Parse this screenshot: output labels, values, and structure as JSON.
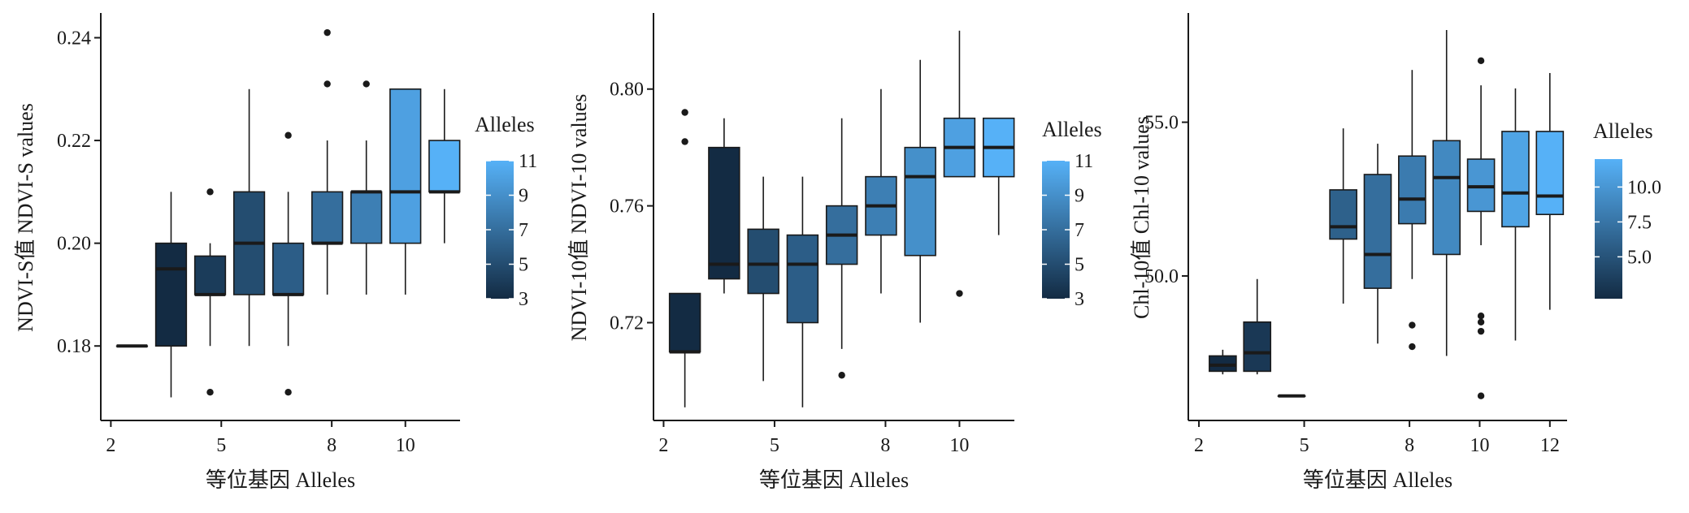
{
  "chart_data": [
    {
      "type": "box",
      "xlabel": "等位基因 Alleles",
      "ylabel": "NDVI-S值 NDVI-S values",
      "x_ticks": [
        2,
        5,
        8,
        10
      ],
      "y_ticks": [
        "0.18",
        "0.20",
        "0.22",
        "0.24"
      ],
      "x_range": [
        1.5,
        13.0
      ],
      "ylim": [
        0.1655,
        0.2445
      ],
      "color_min": 3,
      "color_max": 11,
      "legend": {
        "title": "Alleles",
        "ticks": [
          "3",
          "5",
          "7",
          "9",
          "11"
        ],
        "tick_values": [
          3,
          5,
          7,
          9,
          11
        ],
        "position": "right"
      },
      "boxes": [
        {
          "x": 2.5,
          "allele": 2,
          "lower_whisker": 0.18,
          "q1": 0.18,
          "median": 0.18,
          "q3": 0.18,
          "upper_whisker": 0.18,
          "outliers": []
        },
        {
          "x": 3.75,
          "allele": 3,
          "lower_whisker": 0.17,
          "q1": 0.18,
          "median": 0.195,
          "q3": 0.2,
          "upper_whisker": 0.21,
          "outliers": []
        },
        {
          "x": 5.0,
          "allele": 4,
          "lower_whisker": 0.18,
          "q1": 0.19,
          "median": 0.19,
          "q3": 0.1975,
          "upper_whisker": 0.2,
          "outliers": [
            0.21,
            0.171
          ]
        },
        {
          "x": 6.25,
          "allele": 5,
          "lower_whisker": 0.18,
          "q1": 0.19,
          "median": 0.2,
          "q3": 0.21,
          "upper_whisker": 0.23,
          "outliers": []
        },
        {
          "x": 7.5,
          "allele": 6,
          "lower_whisker": 0.18,
          "q1": 0.19,
          "median": 0.19,
          "q3": 0.2,
          "upper_whisker": 0.21,
          "outliers": [
            0.221,
            0.171
          ]
        },
        {
          "x": 8.75,
          "allele": 7,
          "lower_whisker": 0.19,
          "q1": 0.2,
          "median": 0.2,
          "q3": 0.21,
          "upper_whisker": 0.22,
          "outliers": [
            0.241,
            0.231
          ]
        },
        {
          "x": 10.0,
          "allele": 8,
          "lower_whisker": 0.19,
          "q1": 0.2,
          "median": 0.21,
          "q3": 0.21,
          "upper_whisker": 0.22,
          "outliers": [
            0.231
          ]
        },
        {
          "x": 11.25,
          "allele": 10,
          "lower_whisker": 0.19,
          "q1": 0.2,
          "median": 0.21,
          "q3": 0.23,
          "upper_whisker": 0.23,
          "outliers": []
        },
        {
          "x": 12.5,
          "allele": 11,
          "lower_whisker": 0.2,
          "q1": 0.21,
          "median": 0.21,
          "q3": 0.22,
          "upper_whisker": 0.23,
          "outliers": []
        }
      ]
    },
    {
      "type": "box",
      "xlabel": "等位基因 Alleles",
      "ylabel": "NDVI-10值 NDVI-10 values",
      "x_ticks": [
        2,
        5,
        8,
        10
      ],
      "y_ticks": [
        "0.72",
        "0.76",
        "0.80"
      ],
      "x_range": [
        1.5,
        13.0
      ],
      "ylim": [
        0.6865,
        0.8255
      ],
      "color_min": 3,
      "color_max": 11,
      "legend": {
        "title": "Alleles",
        "ticks": [
          "3",
          "5",
          "7",
          "9",
          "11"
        ],
        "tick_values": [
          3,
          5,
          7,
          9,
          11
        ],
        "position": "right"
      },
      "boxes": [
        {
          "x": 2.5,
          "allele": 2,
          "lower_whisker": 0.691,
          "q1": 0.71,
          "median": 0.71,
          "q3": 0.73,
          "upper_whisker": 0.73,
          "outliers": [
            0.792,
            0.782
          ]
        },
        {
          "x": 3.75,
          "allele": 3,
          "lower_whisker": 0.73,
          "q1": 0.735,
          "median": 0.74,
          "q3": 0.78,
          "upper_whisker": 0.79,
          "outliers": []
        },
        {
          "x": 5.0,
          "allele": 5,
          "lower_whisker": 0.7,
          "q1": 0.73,
          "median": 0.74,
          "q3": 0.752,
          "upper_whisker": 0.77,
          "outliers": []
        },
        {
          "x": 6.25,
          "allele": 6,
          "lower_whisker": 0.691,
          "q1": 0.72,
          "median": 0.74,
          "q3": 0.75,
          "upper_whisker": 0.77,
          "outliers": []
        },
        {
          "x": 7.5,
          "allele": 7,
          "lower_whisker": 0.711,
          "q1": 0.74,
          "median": 0.75,
          "q3": 0.76,
          "upper_whisker": 0.79,
          "outliers": [
            0.702
          ]
        },
        {
          "x": 8.75,
          "allele": 8,
          "lower_whisker": 0.73,
          "q1": 0.75,
          "median": 0.76,
          "q3": 0.77,
          "upper_whisker": 0.8,
          "outliers": []
        },
        {
          "x": 10.0,
          "allele": 9,
          "lower_whisker": 0.72,
          "q1": 0.743,
          "median": 0.77,
          "q3": 0.78,
          "upper_whisker": 0.81,
          "outliers": []
        },
        {
          "x": 11.25,
          "allele": 10,
          "lower_whisker": 0.77,
          "q1": 0.77,
          "median": 0.78,
          "q3": 0.79,
          "upper_whisker": 0.82,
          "outliers": [
            0.73
          ]
        },
        {
          "x": 12.5,
          "allele": 11,
          "lower_whisker": 0.75,
          "q1": 0.77,
          "median": 0.78,
          "q3": 0.79,
          "upper_whisker": 0.79,
          "outliers": []
        }
      ]
    },
    {
      "type": "box",
      "xlabel": "等位基因 Alleles",
      "ylabel": "Chl-10值 Chl-10 values",
      "x_ticks": [
        2,
        5,
        8,
        10,
        12
      ],
      "y_ticks": [
        "50.0",
        "55.0"
      ],
      "x_range": [
        1.5,
        12.5
      ],
      "ylim": [
        45.3,
        58.5
      ],
      "color_min": 2,
      "color_max": 12,
      "legend": {
        "title": "Alleles",
        "ticks": [
          "5.0",
          "7.5",
          "10.0"
        ],
        "tick_values": [
          5.0,
          7.5,
          10.0
        ],
        "position": "right"
      },
      "boxes": [
        {
          "x": 2.5,
          "allele": 2,
          "lower_whisker": 46.8,
          "q1": 46.9,
          "median": 47.1,
          "q3": 47.4,
          "upper_whisker": 47.6,
          "outliers": []
        },
        {
          "x": 3.5,
          "allele": 3,
          "lower_whisker": 46.8,
          "q1": 46.9,
          "median": 47.5,
          "q3": 48.5,
          "upper_whisker": 49.9,
          "outliers": []
        },
        {
          "x": 4.5,
          "allele": 4,
          "lower_whisker": 46.1,
          "q1": 46.1,
          "median": 46.1,
          "q3": 46.1,
          "upper_whisker": 46.1,
          "outliers": []
        },
        {
          "x": 6.0,
          "allele": 6,
          "lower_whisker": 49.1,
          "q1": 51.2,
          "median": 51.6,
          "q3": 52.8,
          "upper_whisker": 54.8,
          "outliers": []
        },
        {
          "x": 7.0,
          "allele": 7,
          "lower_whisker": 47.8,
          "q1": 49.6,
          "median": 50.7,
          "q3": 53.3,
          "upper_whisker": 54.3,
          "outliers": []
        },
        {
          "x": 8.0,
          "allele": 8,
          "lower_whisker": 49.9,
          "q1": 51.7,
          "median": 52.5,
          "q3": 53.9,
          "upper_whisker": 56.7,
          "outliers": [
            48.4,
            47.7
          ]
        },
        {
          "x": 9.0,
          "allele": 9,
          "lower_whisker": 47.4,
          "q1": 50.7,
          "median": 53.2,
          "q3": 54.4,
          "upper_whisker": 58.0,
          "outliers": []
        },
        {
          "x": 10.0,
          "allele": 10,
          "lower_whisker": 51.0,
          "q1": 52.1,
          "median": 52.9,
          "q3": 53.8,
          "upper_whisker": 56.2,
          "outliers": [
            57.0,
            48.7,
            48.5,
            48.2,
            46.1
          ]
        },
        {
          "x": 11.0,
          "allele": 11,
          "lower_whisker": 47.9,
          "q1": 51.6,
          "median": 52.7,
          "q3": 54.7,
          "upper_whisker": 56.1,
          "outliers": []
        },
        {
          "x": 12.0,
          "allele": 12,
          "lower_whisker": 48.9,
          "q1": 52.0,
          "median": 52.6,
          "q3": 54.7,
          "upper_whisker": 56.6,
          "outliers": []
        }
      ]
    }
  ],
  "colors": {
    "low": "#132b43",
    "high": "#56b1f7",
    "axis": "#1a1a1a",
    "box_outline": "#1a1a1a",
    "median": "#1a1a1a",
    "outlier": "#1a1a1a"
  }
}
